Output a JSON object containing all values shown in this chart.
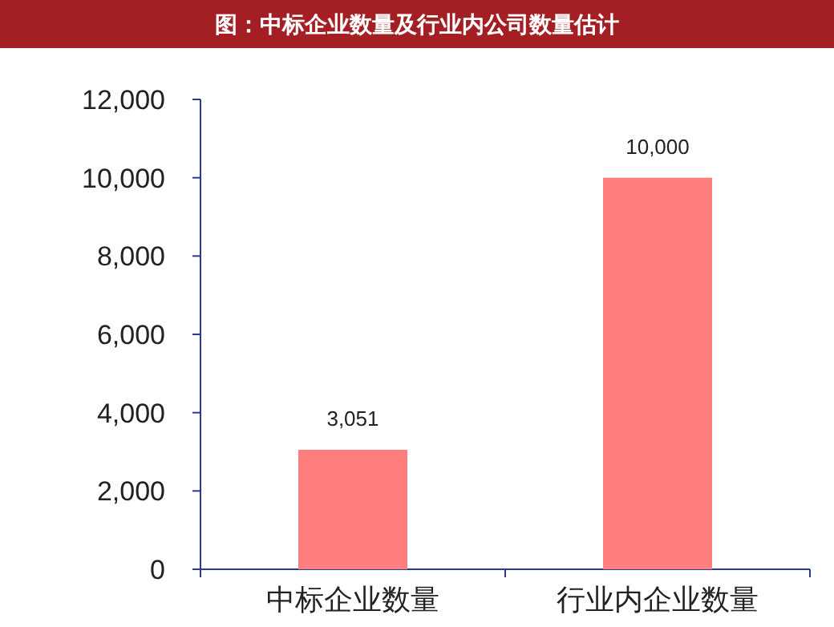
{
  "chart_data": {
    "type": "bar",
    "title": "图：中标企业数量及行业内公司数量估计",
    "categories": [
      "中标企业数量",
      "行业内企业数量"
    ],
    "values": [
      3051,
      10000
    ],
    "color": "#ff7f7f",
    "value_labels": [
      "3,051",
      "10,000"
    ],
    "ylim": [
      0,
      12000
    ],
    "yticks": [
      0,
      {
        "value": 2000,
        "label": "2,000"
      },
      {
        "value": 4000,
        "label": "4,000"
      },
      {
        "value": 6000,
        "label": "6,000"
      },
      {
        "value": 8000,
        "label": "8,000"
      },
      {
        "value": 10000,
        "label": "10,000"
      },
      {
        "value": 12000,
        "label": "12,000"
      }
    ]
  }
}
